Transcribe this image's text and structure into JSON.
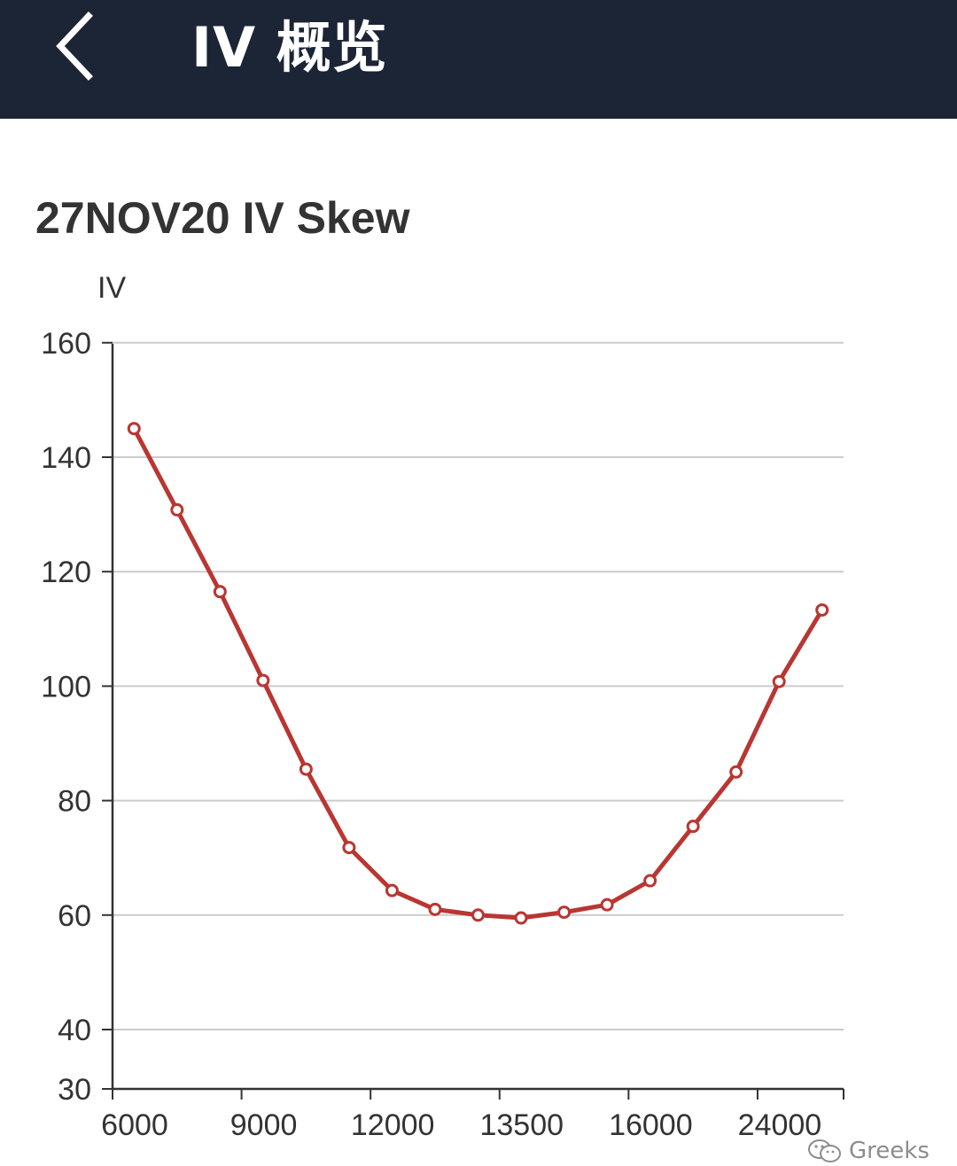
{
  "header": {
    "title": "IV 概览",
    "back_icon": "chevron-left-icon",
    "background_color": "#1c2535"
  },
  "watermark": {
    "icon": "wechat-icon",
    "text": "Greeks"
  },
  "chart_data": {
    "type": "line",
    "title": "27NOV20 IV Skew",
    "xlabel": "",
    "ylabel": "IV",
    "x_axis_type": "category",
    "x_tick_labels": [
      "6000",
      "9000",
      "12000",
      "13500",
      "16000",
      "24000"
    ],
    "y_ticks": [
      30,
      40,
      60,
      80,
      100,
      120,
      140,
      160
    ],
    "ylim": [
      30,
      160
    ],
    "grid": true,
    "legend": "none",
    "line_color": "#b93632",
    "series": [
      {
        "values": [
          145,
          130.8,
          116.5,
          101,
          85.5,
          71.8,
          64.3,
          61,
          60,
          59.5,
          60.5,
          61.8,
          66,
          75.5,
          85,
          100.8,
          113.3
        ]
      }
    ]
  }
}
